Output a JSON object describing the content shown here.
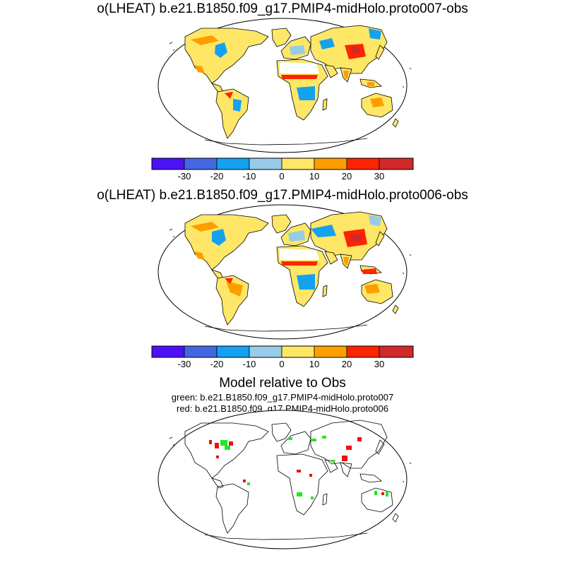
{
  "panels": [
    {
      "title": "o(LHEAT) b.e21.B1850.f09_g17.PMIP4-midHolo.proto007-obs"
    },
    {
      "title": "o(LHEAT) b.e21.B1850.f09_g17.PMIP4-midHolo.proto006-obs"
    }
  ],
  "colorbar": {
    "colors": [
      "#4b12f5",
      "#4268e1",
      "#14a2f0",
      "#97cbe9",
      "#fee766",
      "#fd9e00",
      "#fd2402",
      "#d2282a"
    ],
    "labels": [
      "-30",
      "-20",
      "-10",
      "0",
      "10",
      "20",
      "30"
    ]
  },
  "comparison": {
    "title": "Model relative to Obs",
    "line1": "green: b.e21.B1850.f09_g17.PMIP4-midHolo.proto007",
    "line2": "red: b.e21.B1850.f09_g17.PMIP4-midHolo.proto006",
    "colors": {
      "green": "#22e822",
      "red": "#ee1111"
    }
  }
}
